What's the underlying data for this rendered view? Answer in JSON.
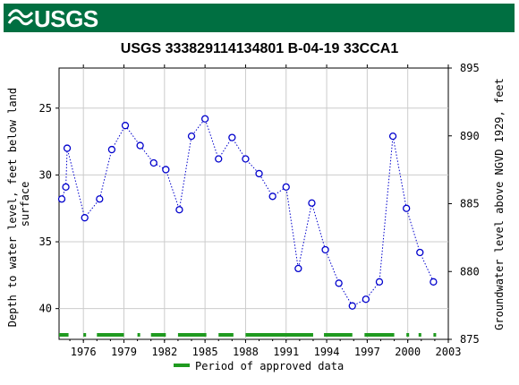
{
  "header": {
    "logo_text": "USGS",
    "banner_color": "#006f41"
  },
  "chart_data": {
    "type": "scatter",
    "title": "USGS 333829114134801 B-04-19 33CCA1",
    "ylabel_left": "Depth to water level, feet below land surface",
    "ylabel_left_lines": [
      "Depth to water level, feet below land",
      "surface"
    ],
    "ylabel_right": "Groundwater level above NGVD 1929, feet",
    "xlim": [
      1974.2,
      2003.0
    ],
    "ylim_left": [
      22.0,
      42.3
    ],
    "ylim_right": [
      895,
      875
    ],
    "x_ticks": [
      1976,
      1979,
      1982,
      1985,
      1988,
      1991,
      1994,
      1997,
      2000,
      2003
    ],
    "x_tick_labels": [
      "1976",
      "1979",
      "1982",
      "1985",
      "1988",
      "1991",
      "1994",
      "1997",
      "2000",
      "2003"
    ],
    "y_ticks_left": [
      25,
      30,
      35,
      40
    ],
    "y_tick_labels_left": [
      "25",
      "30",
      "35",
      "40"
    ],
    "y_ticks_right": [
      895,
      890,
      885,
      880,
      875
    ],
    "y_tick_labels_right": [
      "895",
      "890",
      "885",
      "880",
      "875"
    ],
    "grid": true,
    "series": [
      {
        "x": [
          1974.4,
          1974.7,
          1974.8,
          1976.1,
          1977.2,
          1978.1,
          1979.1,
          1980.2,
          1981.2,
          1982.1,
          1983.1,
          1984.0,
          1985.0,
          1986.0,
          1987.0,
          1988.0,
          1989.0,
          1990.0,
          1991.0,
          1991.9,
          1992.9,
          1993.9,
          1994.9,
          1995.9,
          1996.9,
          1997.9,
          1998.9,
          1999.9,
          2000.9,
          2001.9
        ],
        "y": [
          31.8,
          30.9,
          28.0,
          33.2,
          31.8,
          28.1,
          26.3,
          27.8,
          29.1,
          29.6,
          32.6,
          27.1,
          25.8,
          28.8,
          27.2,
          28.8,
          29.9,
          31.6,
          30.9,
          37.0,
          32.1,
          35.6,
          38.1,
          39.8,
          39.3,
          38.0,
          27.1,
          32.5,
          35.8,
          38.0
        ],
        "connected_until": 2001.9,
        "marker": "open-circle",
        "color": "#0000cc"
      }
    ],
    "approved_periods": [
      [
        1974.2,
        1974.9
      ],
      [
        1976.0,
        1976.2
      ],
      [
        1977.0,
        1979.0
      ],
      [
        1980.0,
        1980.2
      ],
      [
        1981.0,
        1982.1
      ],
      [
        1983.0,
        1985.1
      ],
      [
        1986.0,
        1987.1
      ],
      [
        1988.0,
        1993.0
      ],
      [
        1993.8,
        1995.9
      ],
      [
        1996.8,
        1999.0
      ],
      [
        1999.9,
        2000.1
      ],
      [
        2000.8,
        2001.0
      ],
      [
        2001.9,
        2002.1
      ]
    ],
    "approved_color": "#1f9a1f",
    "legend": {
      "label": "Period of approved data",
      "position": "bottom-center"
    }
  }
}
